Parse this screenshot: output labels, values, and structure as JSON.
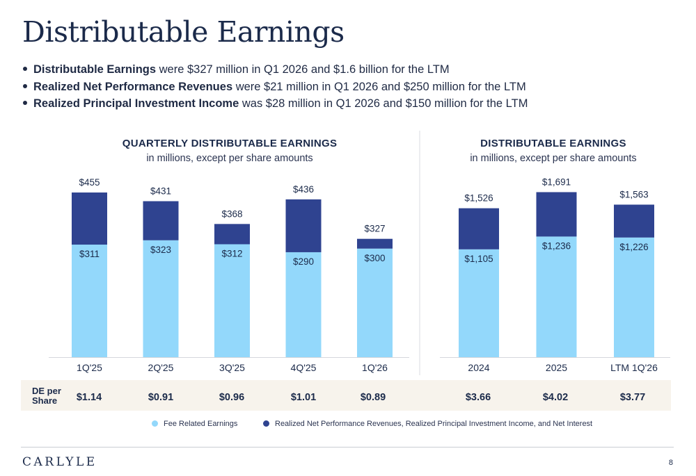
{
  "title": "Distributable Earnings",
  "bullets": [
    {
      "bold": "Distributable Earnings",
      "text": " were $327 million in Q1 2026 and $1.6 billion for the LTM"
    },
    {
      "bold": "Realized Net Performance Revenues",
      "text": " were $21 million in Q1 2026 and $250 million for the LTM"
    },
    {
      "bold": "Realized Principal Investment Income",
      "text": " was $28 million in Q1 2026 and $150 million for the LTM"
    }
  ],
  "chart_data": [
    {
      "type": "bar",
      "stacked": true,
      "title": "QUARTERLY DISTRIBUTABLE EARNINGS",
      "subtitle": "in millions, except per share amounts",
      "categories": [
        "1Q'25",
        "2Q'25",
        "3Q'25",
        "4Q'25",
        "1Q'26"
      ],
      "series": [
        {
          "name": "Fee Related Earnings",
          "values": [
            311,
            323,
            312,
            290,
            300
          ],
          "color": "#93d8fb"
        },
        {
          "name": "Realized Net Performance Revenues, Realized Principal Investment Income, and Net Interest",
          "values": [
            144,
            108,
            56,
            146,
            27
          ],
          "color": "#2f4390"
        }
      ],
      "segment_labels": [
        "$311",
        "$323",
        "$312",
        "$290",
        "$300"
      ],
      "total_labels": [
        "$455",
        "$431",
        "$368",
        "$436",
        "$327"
      ],
      "totals": [
        455,
        431,
        368,
        436,
        327
      ],
      "ylim": [
        0,
        480
      ]
    },
    {
      "type": "bar",
      "stacked": true,
      "title": "DISTRIBUTABLE EARNINGS",
      "subtitle": "in millions, except per share amounts",
      "categories": [
        "2024",
        "2025",
        "LTM 1Q'26"
      ],
      "series": [
        {
          "name": "Fee Related Earnings",
          "values": [
            1105,
            1236,
            1226
          ],
          "color": "#93d8fb"
        },
        {
          "name": "Realized Net Performance Revenues, Realized Principal Investment Income, and Net Interest",
          "values": [
            421,
            455,
            337
          ],
          "color": "#2f4390"
        }
      ],
      "segment_labels": [
        "$1,105",
        "$1,236",
        "$1,226"
      ],
      "total_labels": [
        "$1,526",
        "$1,691",
        "$1,563"
      ],
      "totals": [
        1526,
        1691,
        1563
      ],
      "ylim": [
        0,
        1780
      ]
    }
  ],
  "de_per_share": {
    "label_line1": "DE per",
    "label_line2": "Share",
    "values": [
      "$1.14",
      "$0.91",
      "$0.96",
      "$1.01",
      "$0.89",
      "$3.66",
      "$4.02",
      "$3.77"
    ]
  },
  "legend": [
    {
      "label": "Fee Related Earnings",
      "color": "#93d8fb"
    },
    {
      "label": "Realized Net Performance Revenues, Realized Principal Investment Income, and Net Interest",
      "color": "#2f4390"
    }
  ],
  "footer": {
    "logo": "CARLYLE",
    "page": "8"
  }
}
